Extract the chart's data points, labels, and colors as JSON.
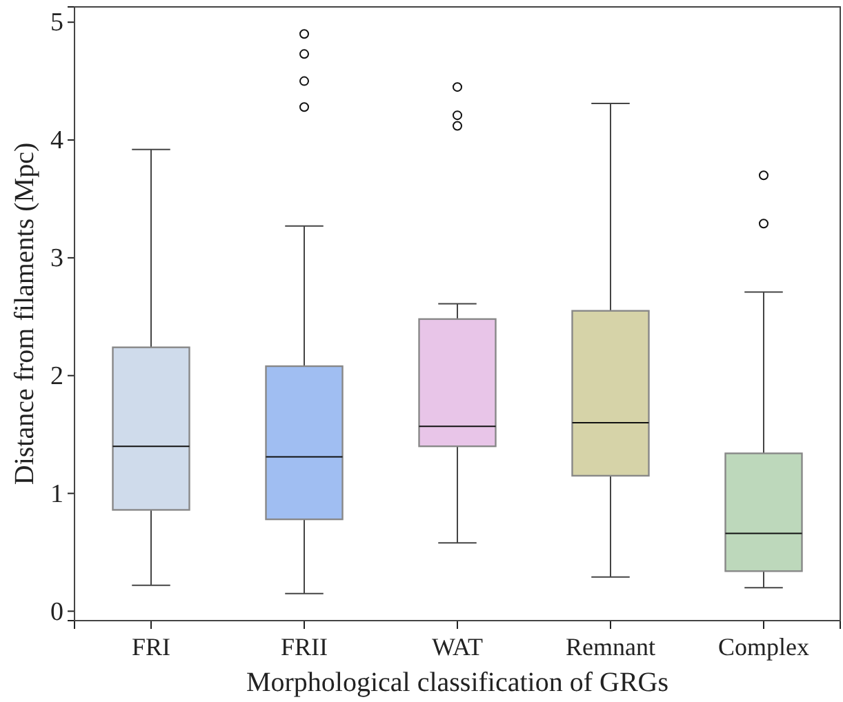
{
  "chart_data": {
    "type": "box",
    "xlabel": "Morphological classification of GRGs",
    "ylabel": "Distance from filaments (Mpc)",
    "categories": [
      "FRI",
      "FRII",
      "WAT",
      "Remnant",
      "Complex"
    ],
    "colors": [
      "#cfdbeb",
      "#a0bef2",
      "#e8c5e8",
      "#d6d3a8",
      "#bdd8bb"
    ],
    "boxes": [
      {
        "low": 0.22,
        "q1": 0.86,
        "median": 1.4,
        "q3": 2.24,
        "high": 3.92
      },
      {
        "low": 0.15,
        "q1": 0.78,
        "median": 1.31,
        "q3": 2.08,
        "high": 3.27,
        "outliers": [
          4.9,
          4.73,
          4.5,
          4.28
        ]
      },
      {
        "low": 0.58,
        "q1": 1.4,
        "median": 1.57,
        "q3": 2.48,
        "high": 2.61,
        "outliers": [
          4.45,
          4.21,
          4.12
        ]
      },
      {
        "low": 0.29,
        "q1": 1.15,
        "median": 1.6,
        "q3": 2.55,
        "high": 4.31
      },
      {
        "low": 0.2,
        "q1": 0.34,
        "median": 0.66,
        "q3": 1.34,
        "high": 2.71,
        "outliers": [
          3.7,
          3.29
        ]
      }
    ],
    "ylim": [
      -0.08,
      5.13
    ],
    "yticks": [
      0,
      1,
      2,
      3,
      4,
      5
    ]
  }
}
